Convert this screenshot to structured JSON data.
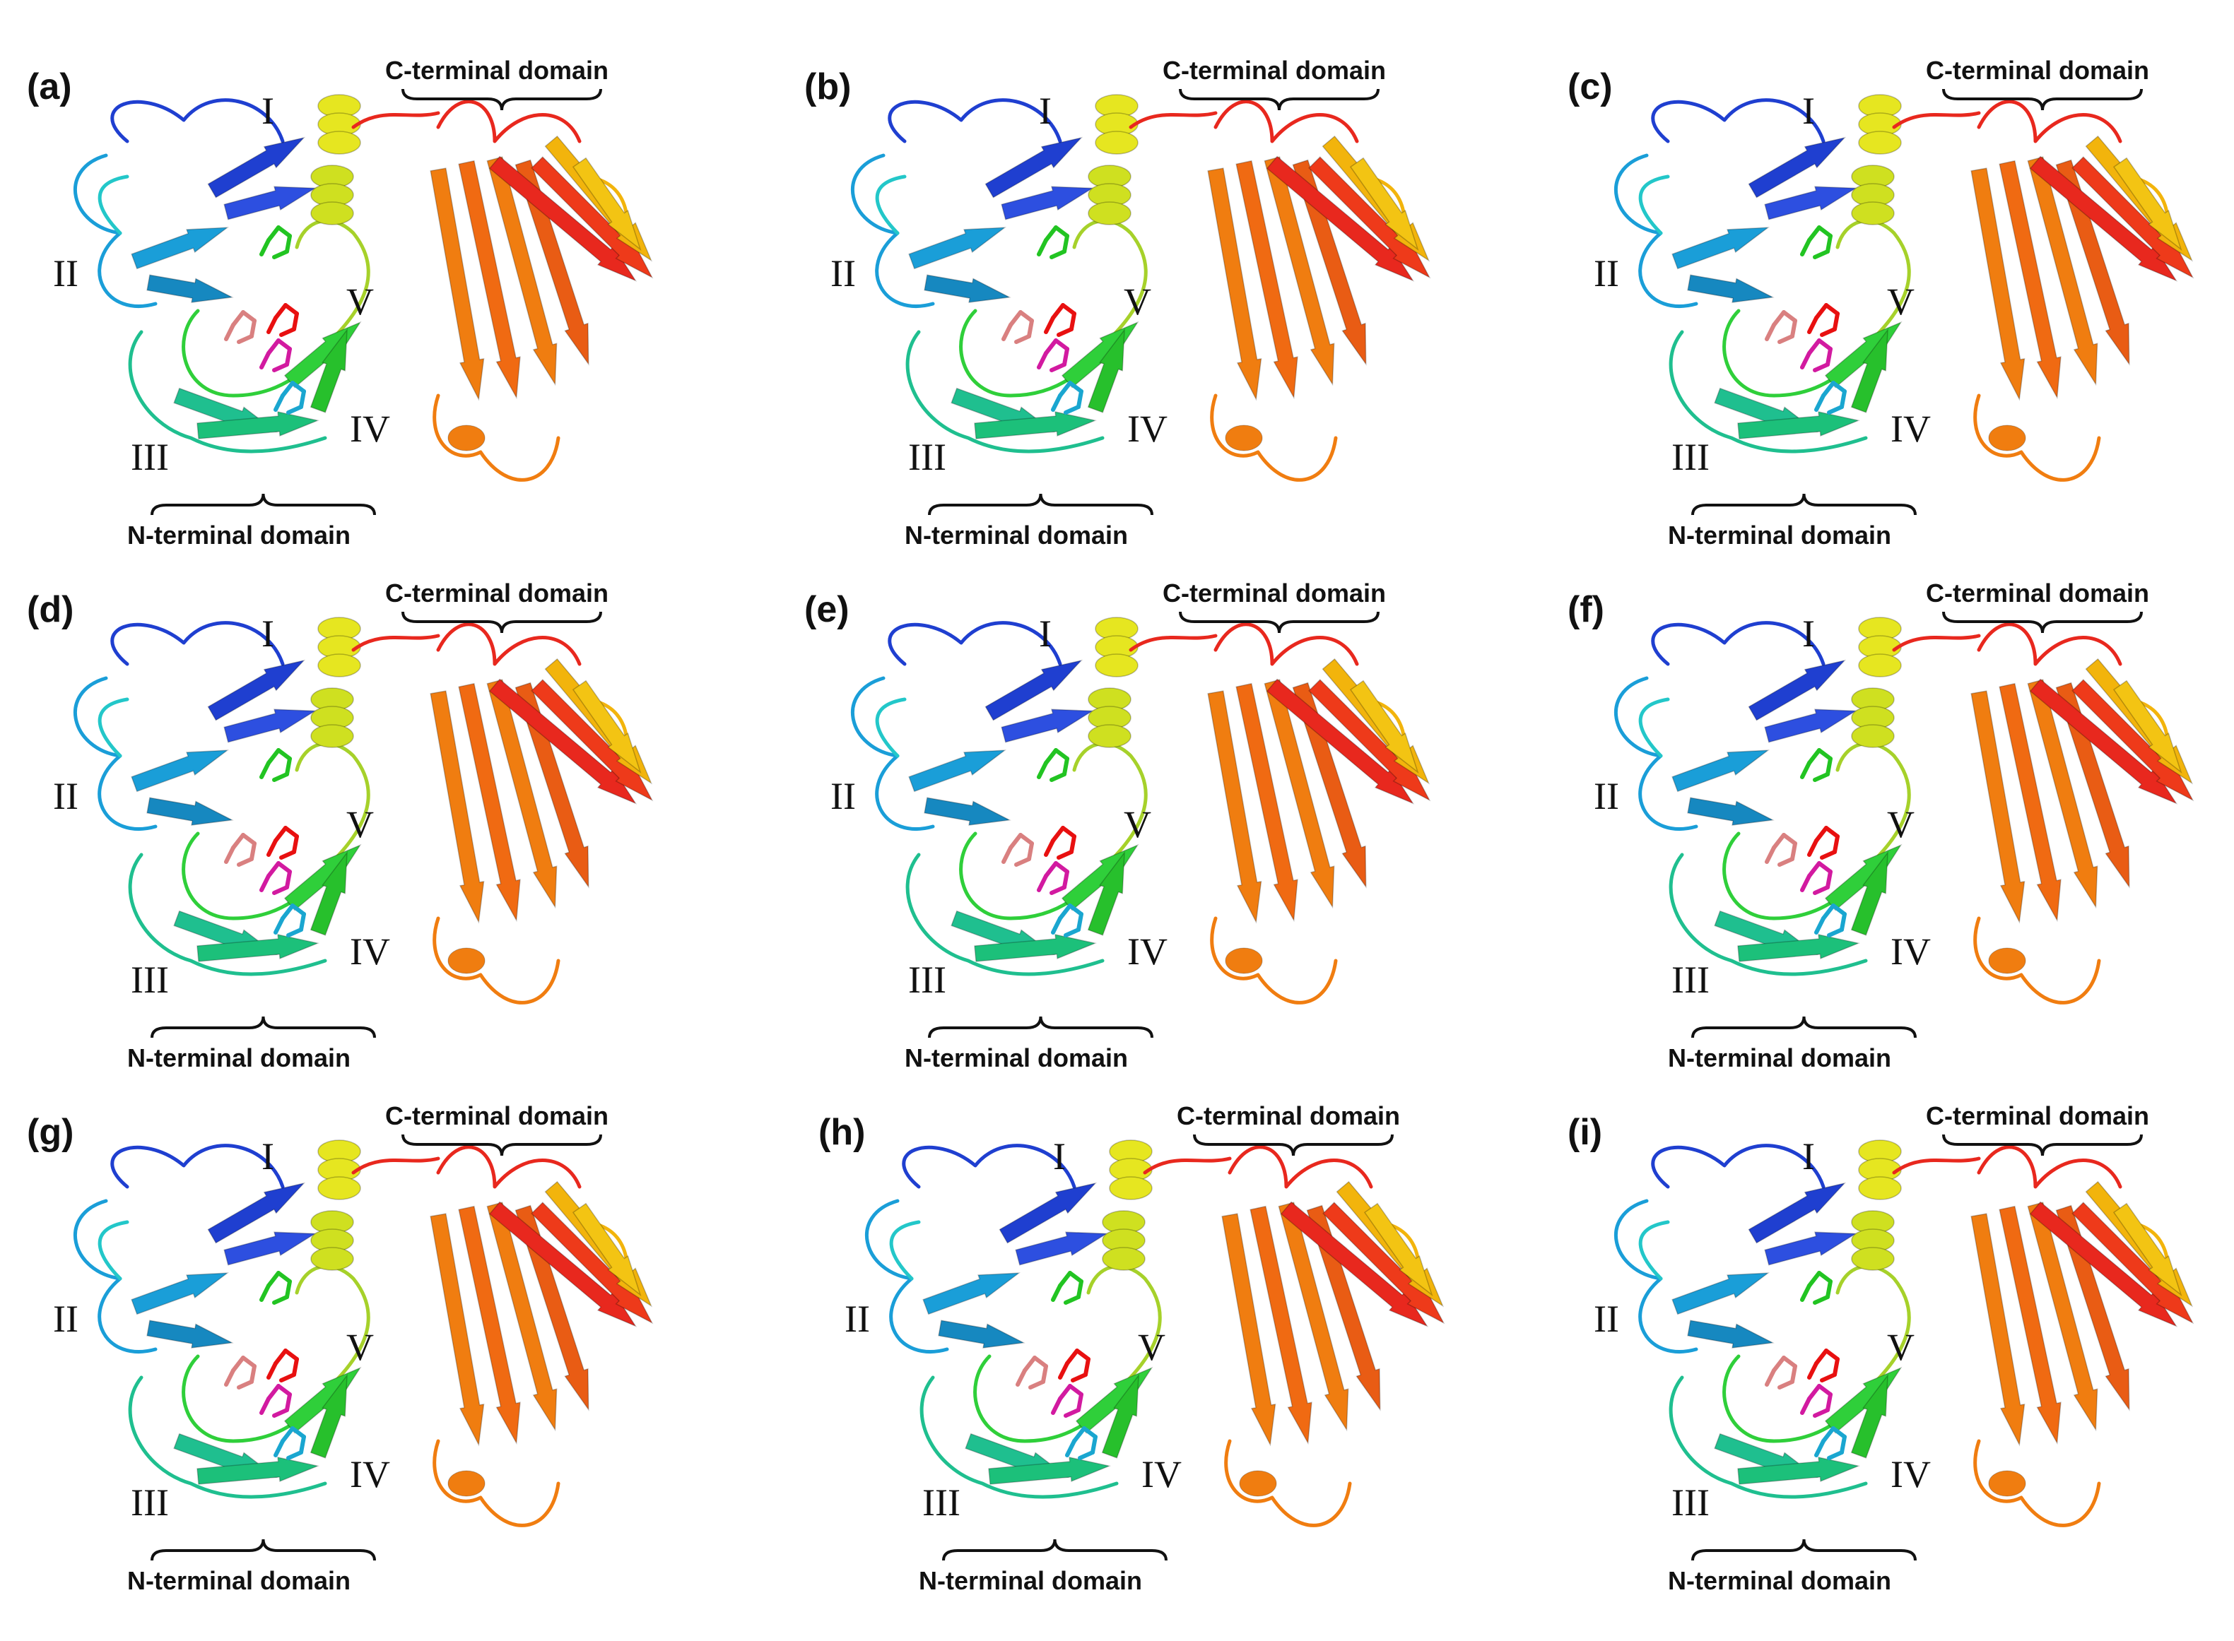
{
  "palette": {
    "blue": "#1f3fd0",
    "lightblue": "#1a9ed8",
    "cyan": "#23c7c9",
    "teal": "#1fbf8f",
    "green": "#2fcf3a",
    "yellowgreen": "#a6d12a",
    "yellow": "#e6e620",
    "gold": "#f2b40c",
    "orange": "#f07d10",
    "red": "#e8281e",
    "ligand_red": "#e81010",
    "ligand_magenta": "#d21aa0",
    "ligand_green": "#22c422"
  },
  "panels": [
    {
      "label": "(a)",
      "n_domain": "N-terminal domain",
      "c_domain": "C-terminal domain",
      "sites": [
        "I",
        "II",
        "III",
        "IV",
        "V"
      ]
    },
    {
      "label": "(b)",
      "n_domain": "N-terminal domain",
      "c_domain": "C-terminal domain",
      "sites": [
        "I",
        "II",
        "III",
        "IV",
        "V"
      ]
    },
    {
      "label": "(c)",
      "n_domain": "N-terminal domain",
      "c_domain": "C-terminal domain",
      "sites": [
        "I",
        "II",
        "III",
        "IV",
        "V"
      ]
    },
    {
      "label": "(d)",
      "n_domain": "N-terminal domain",
      "c_domain": "C-terminal domain",
      "sites": [
        "I",
        "II",
        "III",
        "IV",
        "V"
      ]
    },
    {
      "label": "(e)",
      "n_domain": "N-terminal domain",
      "c_domain": "C-terminal domain",
      "sites": [
        "I",
        "II",
        "III",
        "IV",
        "V"
      ]
    },
    {
      "label": "(f)",
      "n_domain": "N-terminal domain",
      "c_domain": "C-terminal domain",
      "sites": [
        "I",
        "II",
        "III",
        "IV",
        "V"
      ]
    },
    {
      "label": "(g)",
      "n_domain": "N-terminal domain",
      "c_domain": "C-terminal domain",
      "sites": [
        "I",
        "II",
        "III",
        "IV",
        "V"
      ]
    },
    {
      "label": "(h)",
      "n_domain": "N-terminal domain",
      "c_domain": "C-terminal domain",
      "sites": [
        "I",
        "II",
        "III",
        "IV",
        "V"
      ]
    },
    {
      "label": "(i)",
      "n_domain": "N-terminal domain",
      "c_domain": "C-terminal domain",
      "sites": [
        "I",
        "II",
        "III",
        "IV",
        "V"
      ]
    }
  ]
}
